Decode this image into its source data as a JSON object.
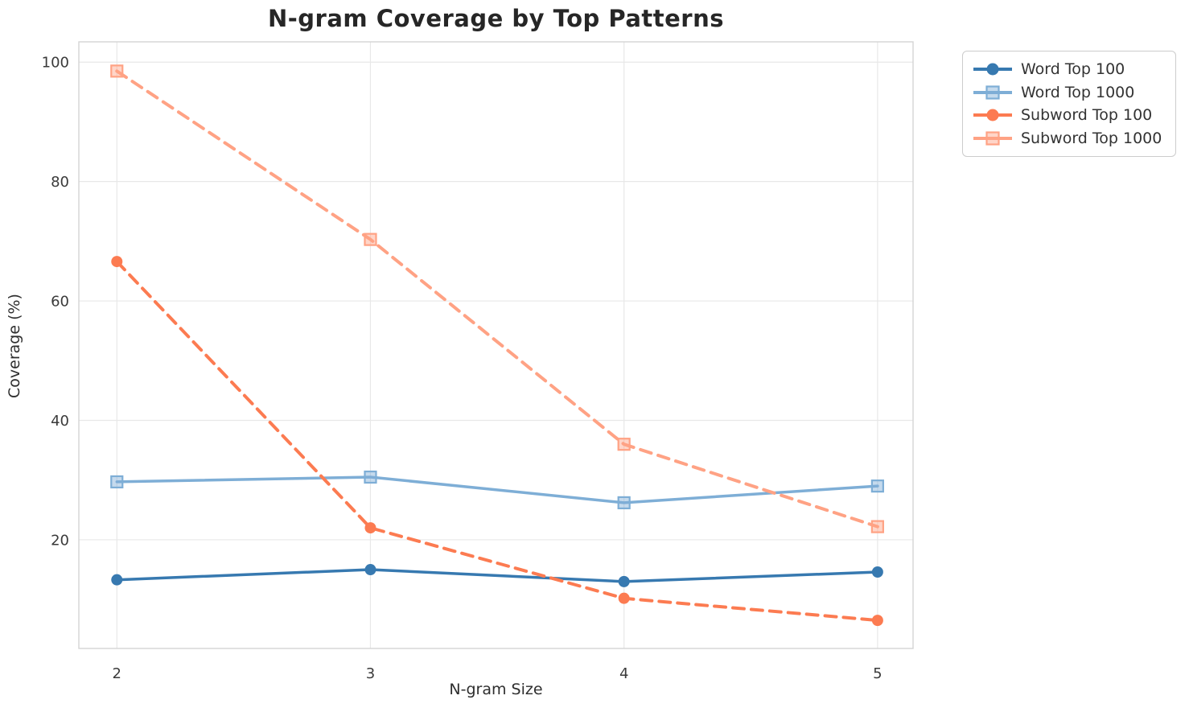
{
  "chart_data": {
    "type": "line",
    "title": "N-gram Coverage by Top Patterns",
    "xlabel": "N-gram Size",
    "ylabel": "Coverage (%)",
    "x": [
      2,
      3,
      4,
      5
    ],
    "xticks": [
      "2",
      "3",
      "4",
      "5"
    ],
    "yticks": [
      20,
      40,
      60,
      80,
      100
    ],
    "xlim": [
      1.85,
      5.14
    ],
    "ylim": [
      1.8,
      103.4
    ],
    "grid": true,
    "legend_position": "outside-upper-right",
    "series": [
      {
        "name": "Word Top 100",
        "values": [
          13.3,
          15.0,
          13.0,
          14.6
        ],
        "color": "#3779b0",
        "marker": "circle",
        "line_style": "solid"
      },
      {
        "name": "Word Top 1000",
        "values": [
          29.7,
          30.5,
          26.2,
          29.0
        ],
        "color": "#7eaed6",
        "marker": "square",
        "line_style": "solid"
      },
      {
        "name": "Subword Top 100",
        "values": [
          66.6,
          22.0,
          10.2,
          6.5
        ],
        "color": "#fc7b51",
        "marker": "circle",
        "line_style": "dashed"
      },
      {
        "name": "Subword Top 1000",
        "values": [
          98.5,
          70.3,
          36.0,
          22.2
        ],
        "color": "#ffa284",
        "marker": "square",
        "line_style": "dashed"
      }
    ],
    "colors": {
      "grid": "#e8e8e8",
      "spine": "#d4d4d4",
      "title_text": "#262626",
      "tick_text": "#3a3a3a"
    }
  }
}
